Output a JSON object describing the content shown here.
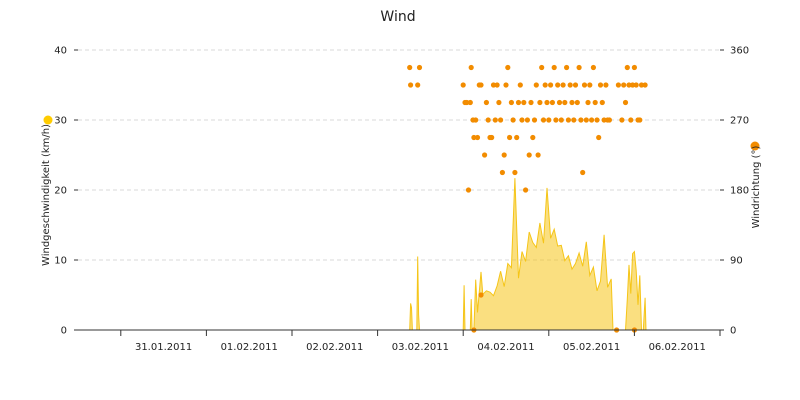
{
  "chart_data": {
    "type": "line",
    "title": "Wind",
    "grid": true,
    "x": {
      "type": "date",
      "tick_labels": [
        "31.01.2011",
        "01.02.2011",
        "02.02.2011",
        "03.02.2011",
        "04.02.2011",
        "05.02.2011",
        "06.02.2011"
      ],
      "range": [
        "30.01.2011 12:00",
        "07.02.2011 00:00"
      ]
    },
    "y_left": {
      "label": "Windgeschwindigkeit (km/h)",
      "ylim": [
        0,
        40
      ],
      "ticks": [
        0,
        10,
        20,
        30,
        40
      ],
      "marker_color": "#ffcc00"
    },
    "y_right": {
      "label": "Windrichtung (°)",
      "ylim": [
        0,
        360
      ],
      "ticks": [
        0,
        90,
        180,
        270,
        360
      ],
      "marker_color": "#f28c00"
    },
    "series": [
      {
        "type": "area",
        "axis": "left",
        "color": "#f5c518",
        "points": [
          [
            "03.02.2011 09:00",
            0
          ],
          [
            "03.02.2011 09:15",
            3.8
          ],
          [
            "03.02.2011 09:30",
            3.2
          ],
          [
            "03.02.2011 09:45",
            0
          ],
          [
            "03.02.2011 11:00",
            0
          ],
          [
            "03.02.2011 11:15",
            10.5
          ],
          [
            "03.02.2011 11:30",
            2.2
          ],
          [
            "03.02.2011 11:45",
            0
          ],
          [
            "04.02.2011 00:00",
            0
          ],
          [
            "04.02.2011 00:15",
            6.4
          ],
          [
            "04.02.2011 00:30",
            0
          ],
          [
            "04.02.2011 02:00",
            0
          ],
          [
            "04.02.2011 02:15",
            4.4
          ],
          [
            "04.02.2011 02:30",
            0
          ],
          [
            "04.02.2011 03:00",
            0
          ],
          [
            "04.02.2011 03:30",
            7.2
          ],
          [
            "04.02.2011 04:00",
            2.5
          ],
          [
            "04.02.2011 05:00",
            8.3
          ],
          [
            "04.02.2011 05:30",
            5.1
          ],
          [
            "04.02.2011 06:30",
            5.6
          ],
          [
            "04.02.2011 07:30",
            5.4
          ],
          [
            "04.02.2011 08:30",
            4.9
          ],
          [
            "04.02.2011 09:30",
            6.3
          ],
          [
            "04.02.2011 10:30",
            8.4
          ],
          [
            "04.02.2011 11:30",
            6.2
          ],
          [
            "04.02.2011 12:30",
            9.5
          ],
          [
            "04.02.2011 13:30",
            8.9
          ],
          [
            "04.02.2011 14:30",
            21.7
          ],
          [
            "04.02.2011 15:30",
            7.4
          ],
          [
            "04.02.2011 16:30",
            11.2
          ],
          [
            "04.02.2011 17:30",
            9.8
          ],
          [
            "04.02.2011 18:30",
            14.0
          ],
          [
            "04.02.2011 19:30",
            12.5
          ],
          [
            "04.02.2011 20:30",
            11.8
          ],
          [
            "04.02.2011 21:30",
            15.3
          ],
          [
            "04.02.2011 22:30",
            12.4
          ],
          [
            "04.02.2011 23:30",
            20.3
          ],
          [
            "05.02.2011 00:30",
            13.1
          ],
          [
            "05.02.2011 01:30",
            14.4
          ],
          [
            "05.02.2011 02:30",
            12.0
          ],
          [
            "05.02.2011 03:30",
            12.1
          ],
          [
            "05.02.2011 04:30",
            9.9
          ],
          [
            "05.02.2011 05:30",
            10.6
          ],
          [
            "05.02.2011 06:30",
            8.7
          ],
          [
            "05.02.2011 07:30",
            9.5
          ],
          [
            "05.02.2011 08:30",
            11.0
          ],
          [
            "05.02.2011 09:30",
            9.1
          ],
          [
            "05.02.2011 10:30",
            12.6
          ],
          [
            "05.02.2011 11:30",
            7.8
          ],
          [
            "05.02.2011 12:30",
            9.0
          ],
          [
            "05.02.2011 13:30",
            5.6
          ],
          [
            "05.02.2011 14:30",
            7.0
          ],
          [
            "05.02.2011 15:30",
            13.6
          ],
          [
            "05.02.2011 16:30",
            6.1
          ],
          [
            "05.02.2011 17:30",
            7.3
          ],
          [
            "05.02.2011 18:00",
            0
          ],
          [
            "05.02.2011 21:30",
            0
          ],
          [
            "05.02.2011 22:00",
            4.4
          ],
          [
            "05.02.2011 22:30",
            9.3
          ],
          [
            "05.02.2011 23:00",
            5.2
          ],
          [
            "05.02.2011 23:30",
            10.9
          ],
          [
            "06.02.2011 00:00",
            11.2
          ],
          [
            "06.02.2011 00:30",
            8.5
          ],
          [
            "06.02.2011 01:00",
            3.6
          ],
          [
            "06.02.2011 01:30",
            7.8
          ],
          [
            "06.02.2011 02:00",
            0
          ],
          [
            "06.02.2011 02:30",
            0
          ],
          [
            "06.02.2011 03:00",
            4.6
          ],
          [
            "06.02.2011 03:15",
            0
          ]
        ]
      },
      {
        "type": "scatter",
        "axis": "right",
        "color": "#f28c00",
        "points": [
          [
            "03.02.2011 09:00",
            337.5
          ],
          [
            "03.02.2011 09:15",
            315
          ],
          [
            "03.02.2011 11:15",
            315
          ],
          [
            "03.02.2011 11:45",
            337.5
          ],
          [
            "04.02.2011 00:00",
            315
          ],
          [
            "04.02.2011 00:30",
            292.5
          ],
          [
            "04.02.2011 01:00",
            292.5
          ],
          [
            "04.02.2011 01:30",
            180
          ],
          [
            "04.02.2011 02:00",
            292.5
          ],
          [
            "04.02.2011 02:15",
            337.5
          ],
          [
            "04.02.2011 02:45",
            270
          ],
          [
            "04.02.2011 03:00",
            247.5
          ],
          [
            "04.02.2011 03:30",
            270
          ],
          [
            "04.02.2011 04:00",
            247.5
          ],
          [
            "04.02.2011 04:30",
            315
          ],
          [
            "04.02.2011 05:00",
            315
          ],
          [
            "04.02.2011 06:00",
            225
          ],
          [
            "04.02.2011 06:30",
            292.5
          ],
          [
            "04.02.2011 07:00",
            270
          ],
          [
            "04.02.2011 07:30",
            247.5
          ],
          [
            "04.02.2011 08:00",
            247.5
          ],
          [
            "04.02.2011 08:30",
            315
          ],
          [
            "04.02.2011 09:00",
            270
          ],
          [
            "04.02.2011 09:30",
            315
          ],
          [
            "04.02.2011 10:00",
            292.5
          ],
          [
            "04.02.2011 10:30",
            270
          ],
          [
            "04.02.2011 11:00",
            202.5
          ],
          [
            "04.02.2011 11:30",
            225
          ],
          [
            "04.02.2011 12:00",
            315
          ],
          [
            "04.02.2011 12:30",
            337.5
          ],
          [
            "04.02.2011 13:00",
            247.5
          ],
          [
            "04.02.2011 13:30",
            292.5
          ],
          [
            "04.02.2011 14:00",
            270
          ],
          [
            "04.02.2011 14:30",
            202.5
          ],
          [
            "04.02.2011 15:00",
            247.5
          ],
          [
            "04.02.2011 15:30",
            292.5
          ],
          [
            "04.02.2011 16:00",
            315
          ],
          [
            "04.02.2011 16:30",
            270
          ],
          [
            "04.02.2011 17:00",
            292.5
          ],
          [
            "04.02.2011 17:30",
            180
          ],
          [
            "04.02.2011 18:00",
            270
          ],
          [
            "04.02.2011 18:30",
            225
          ],
          [
            "04.02.2011 19:00",
            292.5
          ],
          [
            "04.02.2011 19:30",
            247.5
          ],
          [
            "04.02.2011 20:00",
            270
          ],
          [
            "04.02.2011 20:30",
            315
          ],
          [
            "04.02.2011 21:00",
            225
          ],
          [
            "04.02.2011 21:30",
            292.5
          ],
          [
            "04.02.2011 22:00",
            337.5
          ],
          [
            "04.02.2011 22:30",
            270
          ],
          [
            "04.02.2011 23:00",
            315
          ],
          [
            "04.02.2011 23:30",
            292.5
          ],
          [
            "05.02.2011 00:00",
            270
          ],
          [
            "05.02.2011 00:30",
            315
          ],
          [
            "05.02.2011 01:00",
            292.5
          ],
          [
            "05.02.2011 01:30",
            337.5
          ],
          [
            "05.02.2011 02:00",
            270
          ],
          [
            "05.02.2011 02:30",
            315
          ],
          [
            "05.02.2011 03:00",
            292.5
          ],
          [
            "05.02.2011 03:30",
            270
          ],
          [
            "05.02.2011 04:00",
            315
          ],
          [
            "05.02.2011 04:30",
            292.5
          ],
          [
            "05.02.2011 05:00",
            337.5
          ],
          [
            "05.02.2011 05:30",
            270
          ],
          [
            "05.02.2011 06:00",
            315
          ],
          [
            "05.02.2011 06:30",
            292.5
          ],
          [
            "05.02.2011 07:00",
            270
          ],
          [
            "05.02.2011 07:30",
            315
          ],
          [
            "05.02.2011 08:00",
            292.5
          ],
          [
            "05.02.2011 08:30",
            337.5
          ],
          [
            "05.02.2011 09:00",
            270
          ],
          [
            "05.02.2011 09:30",
            202.5
          ],
          [
            "05.02.2011 10:00",
            315
          ],
          [
            "05.02.2011 10:30",
            270
          ],
          [
            "05.02.2011 11:00",
            292.5
          ],
          [
            "05.02.2011 11:30",
            315
          ],
          [
            "05.02.2011 12:00",
            270
          ],
          [
            "05.02.2011 12:30",
            337.5
          ],
          [
            "05.02.2011 13:00",
            292.5
          ],
          [
            "05.02.2011 13:30",
            270
          ],
          [
            "05.02.2011 14:00",
            247.5
          ],
          [
            "05.02.2011 14:30",
            315
          ],
          [
            "05.02.2011 15:00",
            292.5
          ],
          [
            "05.02.2011 15:30",
            270
          ],
          [
            "05.02.2011 16:00",
            315
          ],
          [
            "05.02.2011 16:30",
            270
          ],
          [
            "05.02.2011 17:00",
            270
          ],
          [
            "05.02.2011 19:30",
            315
          ],
          [
            "05.02.2011 20:30",
            270
          ],
          [
            "05.02.2011 21:00",
            315
          ],
          [
            "05.02.2011 21:30",
            292.5
          ],
          [
            "05.02.2011 22:00",
            337.5
          ],
          [
            "05.02.2011 22:30",
            315
          ],
          [
            "05.02.2011 23:00",
            270
          ],
          [
            "05.02.2011 23:30",
            315
          ],
          [
            "06.02.2011 00:00",
            337.5
          ],
          [
            "06.02.2011 00:30",
            315
          ],
          [
            "06.02.2011 01:00",
            270
          ],
          [
            "06.02.2011 01:30",
            270
          ],
          [
            "06.02.2011 02:00",
            315
          ],
          [
            "06.02.2011 03:00",
            315
          ],
          [
            "04.02.2011 03:00",
            0
          ],
          [
            "04.02.2011 05:00",
            45
          ],
          [
            "05.02.2011 19:00",
            0
          ],
          [
            "06.02.2011 00:00",
            0
          ]
        ]
      }
    ]
  }
}
